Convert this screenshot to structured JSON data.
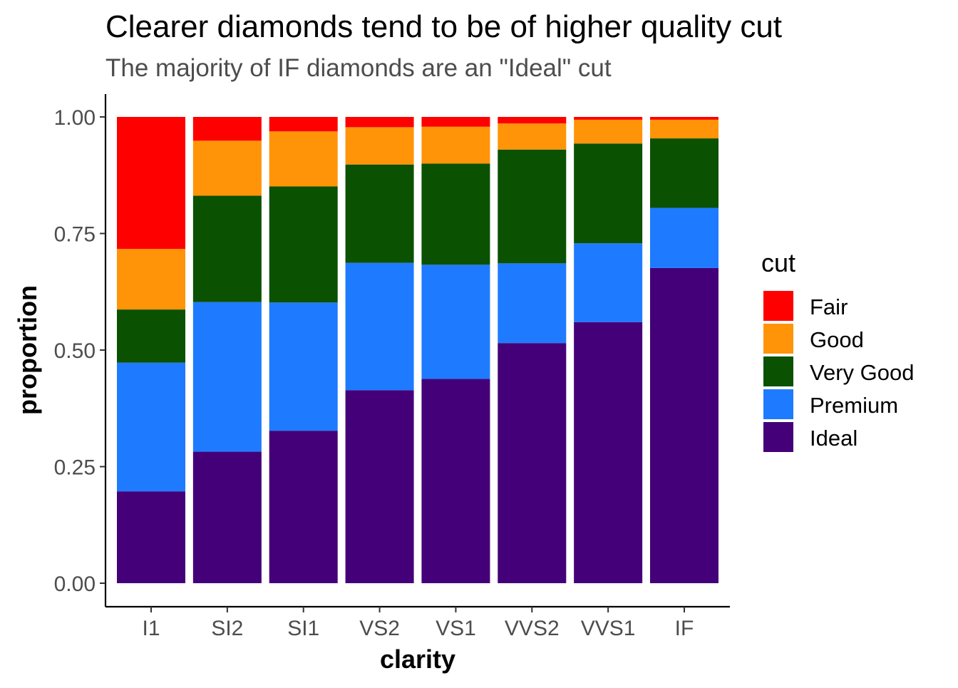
{
  "colors": {
    "Fair": "#ff0000",
    "Good": "#ff9408",
    "Very Good": "#0b5102",
    "Premium": "#1e7bff",
    "Ideal": "#440078"
  },
  "chart_data": {
    "type": "bar",
    "stacked": true,
    "title": "Clearer diamonds tend to be of higher quality cut",
    "subtitle": "The majority of IF diamonds are an \"Ideal\" cut",
    "xlabel": "clarity",
    "ylabel": "proportion",
    "ylim": [
      0,
      1
    ],
    "yticks": [
      "0.00",
      "0.25",
      "0.50",
      "0.75",
      "1.00"
    ],
    "categories": [
      "I1",
      "SI2",
      "SI1",
      "VS2",
      "VS1",
      "VVS2",
      "VVS1",
      "IF"
    ],
    "legend": {
      "title": "cut",
      "position": "right"
    },
    "grid": false,
    "series": [
      {
        "name": "Ideal",
        "values": [
          0.197,
          0.282,
          0.327,
          0.414,
          0.438,
          0.515,
          0.56,
          0.676
        ]
      },
      {
        "name": "Premium",
        "values": [
          0.276,
          0.321,
          0.275,
          0.273,
          0.245,
          0.171,
          0.169,
          0.129
        ]
      },
      {
        "name": "Very Good",
        "values": [
          0.114,
          0.228,
          0.249,
          0.211,
          0.217,
          0.244,
          0.214,
          0.149
        ]
      },
      {
        "name": "Good",
        "values": [
          0.13,
          0.118,
          0.118,
          0.08,
          0.079,
          0.056,
          0.051,
          0.04
        ]
      },
      {
        "name": "Fair",
        "values": [
          0.283,
          0.051,
          0.031,
          0.022,
          0.021,
          0.014,
          0.006,
          0.006
        ]
      }
    ]
  }
}
